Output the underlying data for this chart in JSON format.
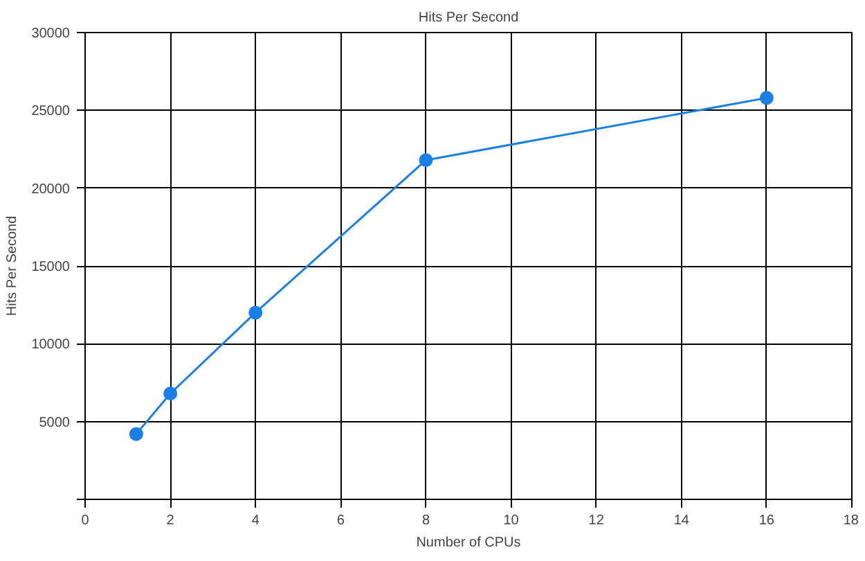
{
  "chart_data": {
    "type": "line",
    "title": "Hits Per Second",
    "xlabel": "Number of CPUs",
    "ylabel": "Hits Per Second",
    "x": [
      1.2,
      2,
      4,
      8,
      16
    ],
    "series": [
      {
        "color": "#1a7fe6",
        "values": [
          4200,
          6800,
          12000,
          21800,
          25800
        ]
      }
    ],
    "xlim": [
      0,
      18
    ],
    "xticks": [
      0,
      2,
      4,
      6,
      8,
      10,
      12,
      14,
      16,
      18
    ],
    "ylim": [
      0,
      30000
    ],
    "yticks": [
      {
        "value": 0,
        "label": null
      },
      5000,
      10000,
      15000,
      20000,
      25000,
      30000
    ],
    "grid": true,
    "marker": "circle",
    "line_style": "solid"
  }
}
